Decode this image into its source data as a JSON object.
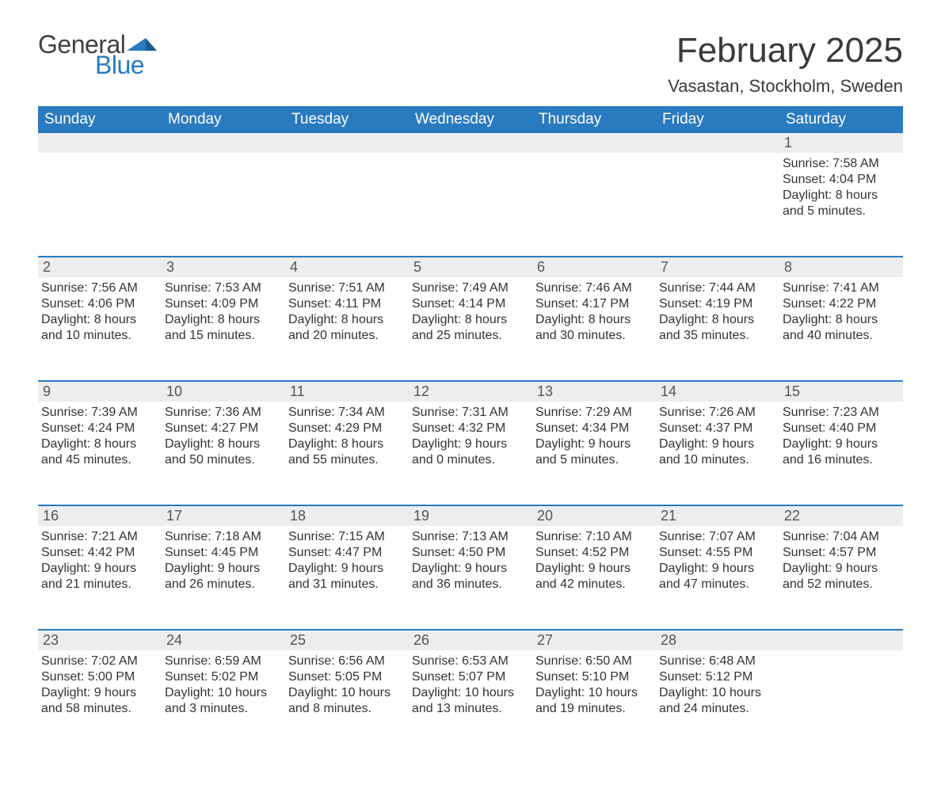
{
  "logo": {
    "word1": "General",
    "word2": "Blue",
    "word1_color": "#414141",
    "word2_color": "#2a7ac0",
    "mark_color": "#2a7ac0"
  },
  "title": "February 2025",
  "location": "Vasastan, Stockholm, Sweden",
  "colors": {
    "header_bg": "#2a7ac0",
    "header_text": "#ffffff",
    "daynum_bg": "#ededed",
    "daynum_text": "#555555",
    "body_text": "#333333",
    "rule": "#2a7ac0",
    "page_bg": "#ffffff"
  },
  "typography": {
    "title_fontsize": 44,
    "location_fontsize": 22,
    "dow_fontsize": 19,
    "daynum_fontsize": 18,
    "body_fontsize": 16
  },
  "dow": [
    "Sunday",
    "Monday",
    "Tuesday",
    "Wednesday",
    "Thursday",
    "Friday",
    "Saturday"
  ],
  "weeks": [
    [
      {
        "n": "",
        "lines": []
      },
      {
        "n": "",
        "lines": []
      },
      {
        "n": "",
        "lines": []
      },
      {
        "n": "",
        "lines": []
      },
      {
        "n": "",
        "lines": []
      },
      {
        "n": "",
        "lines": []
      },
      {
        "n": "1",
        "lines": [
          "Sunrise: 7:58 AM",
          "Sunset: 4:04 PM",
          "Daylight: 8 hours and 5 minutes."
        ]
      }
    ],
    [
      {
        "n": "2",
        "lines": [
          "Sunrise: 7:56 AM",
          "Sunset: 4:06 PM",
          "Daylight: 8 hours and 10 minutes."
        ]
      },
      {
        "n": "3",
        "lines": [
          "Sunrise: 7:53 AM",
          "Sunset: 4:09 PM",
          "Daylight: 8 hours and 15 minutes."
        ]
      },
      {
        "n": "4",
        "lines": [
          "Sunrise: 7:51 AM",
          "Sunset: 4:11 PM",
          "Daylight: 8 hours and 20 minutes."
        ]
      },
      {
        "n": "5",
        "lines": [
          "Sunrise: 7:49 AM",
          "Sunset: 4:14 PM",
          "Daylight: 8 hours and 25 minutes."
        ]
      },
      {
        "n": "6",
        "lines": [
          "Sunrise: 7:46 AM",
          "Sunset: 4:17 PM",
          "Daylight: 8 hours and 30 minutes."
        ]
      },
      {
        "n": "7",
        "lines": [
          "Sunrise: 7:44 AM",
          "Sunset: 4:19 PM",
          "Daylight: 8 hours and 35 minutes."
        ]
      },
      {
        "n": "8",
        "lines": [
          "Sunrise: 7:41 AM",
          "Sunset: 4:22 PM",
          "Daylight: 8 hours and 40 minutes."
        ]
      }
    ],
    [
      {
        "n": "9",
        "lines": [
          "Sunrise: 7:39 AM",
          "Sunset: 4:24 PM",
          "Daylight: 8 hours and 45 minutes."
        ]
      },
      {
        "n": "10",
        "lines": [
          "Sunrise: 7:36 AM",
          "Sunset: 4:27 PM",
          "Daylight: 8 hours and 50 minutes."
        ]
      },
      {
        "n": "11",
        "lines": [
          "Sunrise: 7:34 AM",
          "Sunset: 4:29 PM",
          "Daylight: 8 hours and 55 minutes."
        ]
      },
      {
        "n": "12",
        "lines": [
          "Sunrise: 7:31 AM",
          "Sunset: 4:32 PM",
          "Daylight: 9 hours and 0 minutes."
        ]
      },
      {
        "n": "13",
        "lines": [
          "Sunrise: 7:29 AM",
          "Sunset: 4:34 PM",
          "Daylight: 9 hours and 5 minutes."
        ]
      },
      {
        "n": "14",
        "lines": [
          "Sunrise: 7:26 AM",
          "Sunset: 4:37 PM",
          "Daylight: 9 hours and 10 minutes."
        ]
      },
      {
        "n": "15",
        "lines": [
          "Sunrise: 7:23 AM",
          "Sunset: 4:40 PM",
          "Daylight: 9 hours and 16 minutes."
        ]
      }
    ],
    [
      {
        "n": "16",
        "lines": [
          "Sunrise: 7:21 AM",
          "Sunset: 4:42 PM",
          "Daylight: 9 hours and 21 minutes."
        ]
      },
      {
        "n": "17",
        "lines": [
          "Sunrise: 7:18 AM",
          "Sunset: 4:45 PM",
          "Daylight: 9 hours and 26 minutes."
        ]
      },
      {
        "n": "18",
        "lines": [
          "Sunrise: 7:15 AM",
          "Sunset: 4:47 PM",
          "Daylight: 9 hours and 31 minutes."
        ]
      },
      {
        "n": "19",
        "lines": [
          "Sunrise: 7:13 AM",
          "Sunset: 4:50 PM",
          "Daylight: 9 hours and 36 minutes."
        ]
      },
      {
        "n": "20",
        "lines": [
          "Sunrise: 7:10 AM",
          "Sunset: 4:52 PM",
          "Daylight: 9 hours and 42 minutes."
        ]
      },
      {
        "n": "21",
        "lines": [
          "Sunrise: 7:07 AM",
          "Sunset: 4:55 PM",
          "Daylight: 9 hours and 47 minutes."
        ]
      },
      {
        "n": "22",
        "lines": [
          "Sunrise: 7:04 AM",
          "Sunset: 4:57 PM",
          "Daylight: 9 hours and 52 minutes."
        ]
      }
    ],
    [
      {
        "n": "23",
        "lines": [
          "Sunrise: 7:02 AM",
          "Sunset: 5:00 PM",
          "Daylight: 9 hours and 58 minutes."
        ]
      },
      {
        "n": "24",
        "lines": [
          "Sunrise: 6:59 AM",
          "Sunset: 5:02 PM",
          "Daylight: 10 hours and 3 minutes."
        ]
      },
      {
        "n": "25",
        "lines": [
          "Sunrise: 6:56 AM",
          "Sunset: 5:05 PM",
          "Daylight: 10 hours and 8 minutes."
        ]
      },
      {
        "n": "26",
        "lines": [
          "Sunrise: 6:53 AM",
          "Sunset: 5:07 PM",
          "Daylight: 10 hours and 13 minutes."
        ]
      },
      {
        "n": "27",
        "lines": [
          "Sunrise: 6:50 AM",
          "Sunset: 5:10 PM",
          "Daylight: 10 hours and 19 minutes."
        ]
      },
      {
        "n": "28",
        "lines": [
          "Sunrise: 6:48 AM",
          "Sunset: 5:12 PM",
          "Daylight: 10 hours and 24 minutes."
        ]
      },
      {
        "n": "",
        "lines": []
      }
    ]
  ]
}
